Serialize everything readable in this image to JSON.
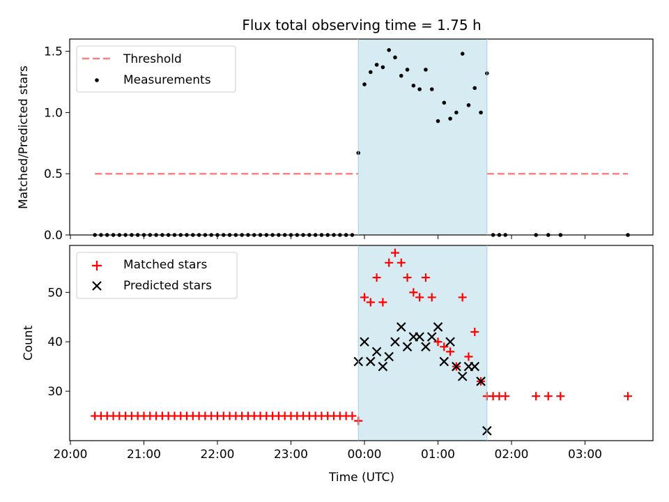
{
  "title": "Flux total observing time = 1.75 h",
  "colors": {
    "threshold": "#ff7f7f",
    "measurement": "#000000",
    "matched": "#ff0000",
    "predicted": "#000000",
    "shade": "#add8e6"
  },
  "chart_data": [
    {
      "type": "scatter",
      "ylabel": "Matched/Predicted stars",
      "ylim": [
        0,
        1.6
      ],
      "yticks": [
        0.0,
        0.5,
        1.0,
        1.5
      ],
      "ytick_labels": [
        "0.0",
        "0.5",
        "1.0",
        "1.5"
      ],
      "legend_position": "top-left",
      "legend": [
        "Threshold",
        "Measurements"
      ],
      "shaded_interval": [
        "23:55",
        "01:40"
      ],
      "threshold": {
        "name": "Threshold",
        "x": [
          "20:20",
          "23:55"
        ],
        "y": 0.5
      },
      "threshold_continuation": {
        "x": [
          "01:40",
          "03:35"
        ],
        "y": 0.5
      },
      "series": [
        {
          "name": "Measurements",
          "x": [
            "20:20",
            "20:25",
            "20:30",
            "20:35",
            "20:40",
            "20:45",
            "20:50",
            "20:55",
            "21:00",
            "21:05",
            "21:10",
            "21:15",
            "21:20",
            "21:25",
            "21:30",
            "21:35",
            "21:40",
            "21:45",
            "21:50",
            "21:55",
            "22:00",
            "22:05",
            "22:10",
            "22:15",
            "22:20",
            "22:25",
            "22:30",
            "22:35",
            "22:40",
            "22:45",
            "22:50",
            "22:55",
            "23:00",
            "23:05",
            "23:10",
            "23:15",
            "23:20",
            "23:25",
            "23:30",
            "23:35",
            "23:40",
            "23:45",
            "23:50",
            "23:55",
            "00:00",
            "00:05",
            "00:10",
            "00:15",
            "00:20",
            "00:25",
            "00:30",
            "00:35",
            "00:40",
            "00:45",
            "00:50",
            "00:55",
            "01:00",
            "01:05",
            "01:10",
            "01:15",
            "01:20",
            "01:25",
            "01:30",
            "01:35",
            "01:40",
            "01:45",
            "01:50",
            "01:55",
            "02:20",
            "02:30",
            "02:40",
            "03:35"
          ],
          "y": [
            0,
            0,
            0,
            0,
            0,
            0,
            0,
            0,
            0,
            0,
            0,
            0,
            0,
            0,
            0,
            0,
            0,
            0,
            0,
            0,
            0,
            0,
            0,
            0,
            0,
            0,
            0,
            0,
            0,
            0,
            0,
            0,
            0,
            0,
            0,
            0,
            0,
            0,
            0,
            0,
            0,
            0,
            0,
            0.67,
            1.23,
            1.33,
            1.39,
            1.37,
            1.51,
            1.45,
            1.3,
            1.35,
            1.22,
            1.19,
            1.35,
            1.19,
            0.93,
            1.08,
            0.95,
            1.0,
            1.48,
            1.06,
            1.2,
            1.0,
            1.32,
            0,
            0,
            0,
            0,
            0,
            0,
            0
          ]
        }
      ]
    },
    {
      "type": "scatter",
      "ylabel": "Count",
      "xlabel": "Time (UTC)",
      "ylim": [
        20,
        59.5
      ],
      "yticks": [
        30,
        40,
        50
      ],
      "ytick_labels": [
        "30",
        "40",
        "50"
      ],
      "x_ticks": [
        "20:00",
        "21:00",
        "22:00",
        "23:00",
        "00:00",
        "01:00",
        "02:00",
        "03:00"
      ],
      "legend_position": "top-left",
      "legend": [
        "Matched stars",
        "Predicted stars"
      ],
      "shaded_interval": [
        "23:55",
        "01:40"
      ],
      "series": [
        {
          "name": "Matched stars",
          "marker": "+",
          "x": [
            "20:20",
            "20:25",
            "20:30",
            "20:35",
            "20:40",
            "20:45",
            "20:50",
            "20:55",
            "21:00",
            "21:05",
            "21:10",
            "21:15",
            "21:20",
            "21:25",
            "21:30",
            "21:35",
            "21:40",
            "21:45",
            "21:50",
            "21:55",
            "22:00",
            "22:05",
            "22:10",
            "22:15",
            "22:20",
            "22:25",
            "22:30",
            "22:35",
            "22:40",
            "22:45",
            "22:50",
            "22:55",
            "23:00",
            "23:05",
            "23:10",
            "23:15",
            "23:20",
            "23:25",
            "23:30",
            "23:35",
            "23:40",
            "23:45",
            "23:50",
            "23:55",
            "00:00",
            "00:05",
            "00:10",
            "00:15",
            "00:20",
            "00:25",
            "00:30",
            "00:35",
            "00:40",
            "00:45",
            "00:50",
            "00:55",
            "01:00",
            "01:05",
            "01:10",
            "01:15",
            "01:20",
            "01:25",
            "01:30",
            "01:35",
            "01:40",
            "01:45",
            "01:50",
            "01:55",
            "02:20",
            "02:30",
            "02:40",
            "03:35"
          ],
          "y": [
            25,
            25,
            25,
            25,
            25,
            25,
            25,
            25,
            25,
            25,
            25,
            25,
            25,
            25,
            25,
            25,
            25,
            25,
            25,
            25,
            25,
            25,
            25,
            25,
            25,
            25,
            25,
            25,
            25,
            25,
            25,
            25,
            25,
            25,
            25,
            25,
            25,
            25,
            25,
            25,
            25,
            25,
            25,
            24,
            49,
            48,
            53,
            48,
            56,
            58,
            56,
            53,
            50,
            49,
            53,
            49,
            40,
            39,
            38,
            35,
            49,
            37,
            42,
            32,
            29,
            29,
            29,
            29,
            29,
            29,
            29,
            29
          ]
        },
        {
          "name": "Predicted stars",
          "marker": "x",
          "x": [
            "23:55",
            "00:00",
            "00:05",
            "00:10",
            "00:15",
            "00:20",
            "00:25",
            "00:30",
            "00:35",
            "00:40",
            "00:45",
            "00:50",
            "00:55",
            "01:00",
            "01:05",
            "01:10",
            "01:15",
            "01:20",
            "01:25",
            "01:30",
            "01:35",
            "01:40"
          ],
          "y": [
            36,
            40,
            36,
            38,
            35,
            37,
            40,
            43,
            39,
            41,
            41,
            39,
            41,
            43,
            36,
            40,
            35,
            33,
            35,
            35,
            32,
            22
          ]
        }
      ]
    }
  ]
}
